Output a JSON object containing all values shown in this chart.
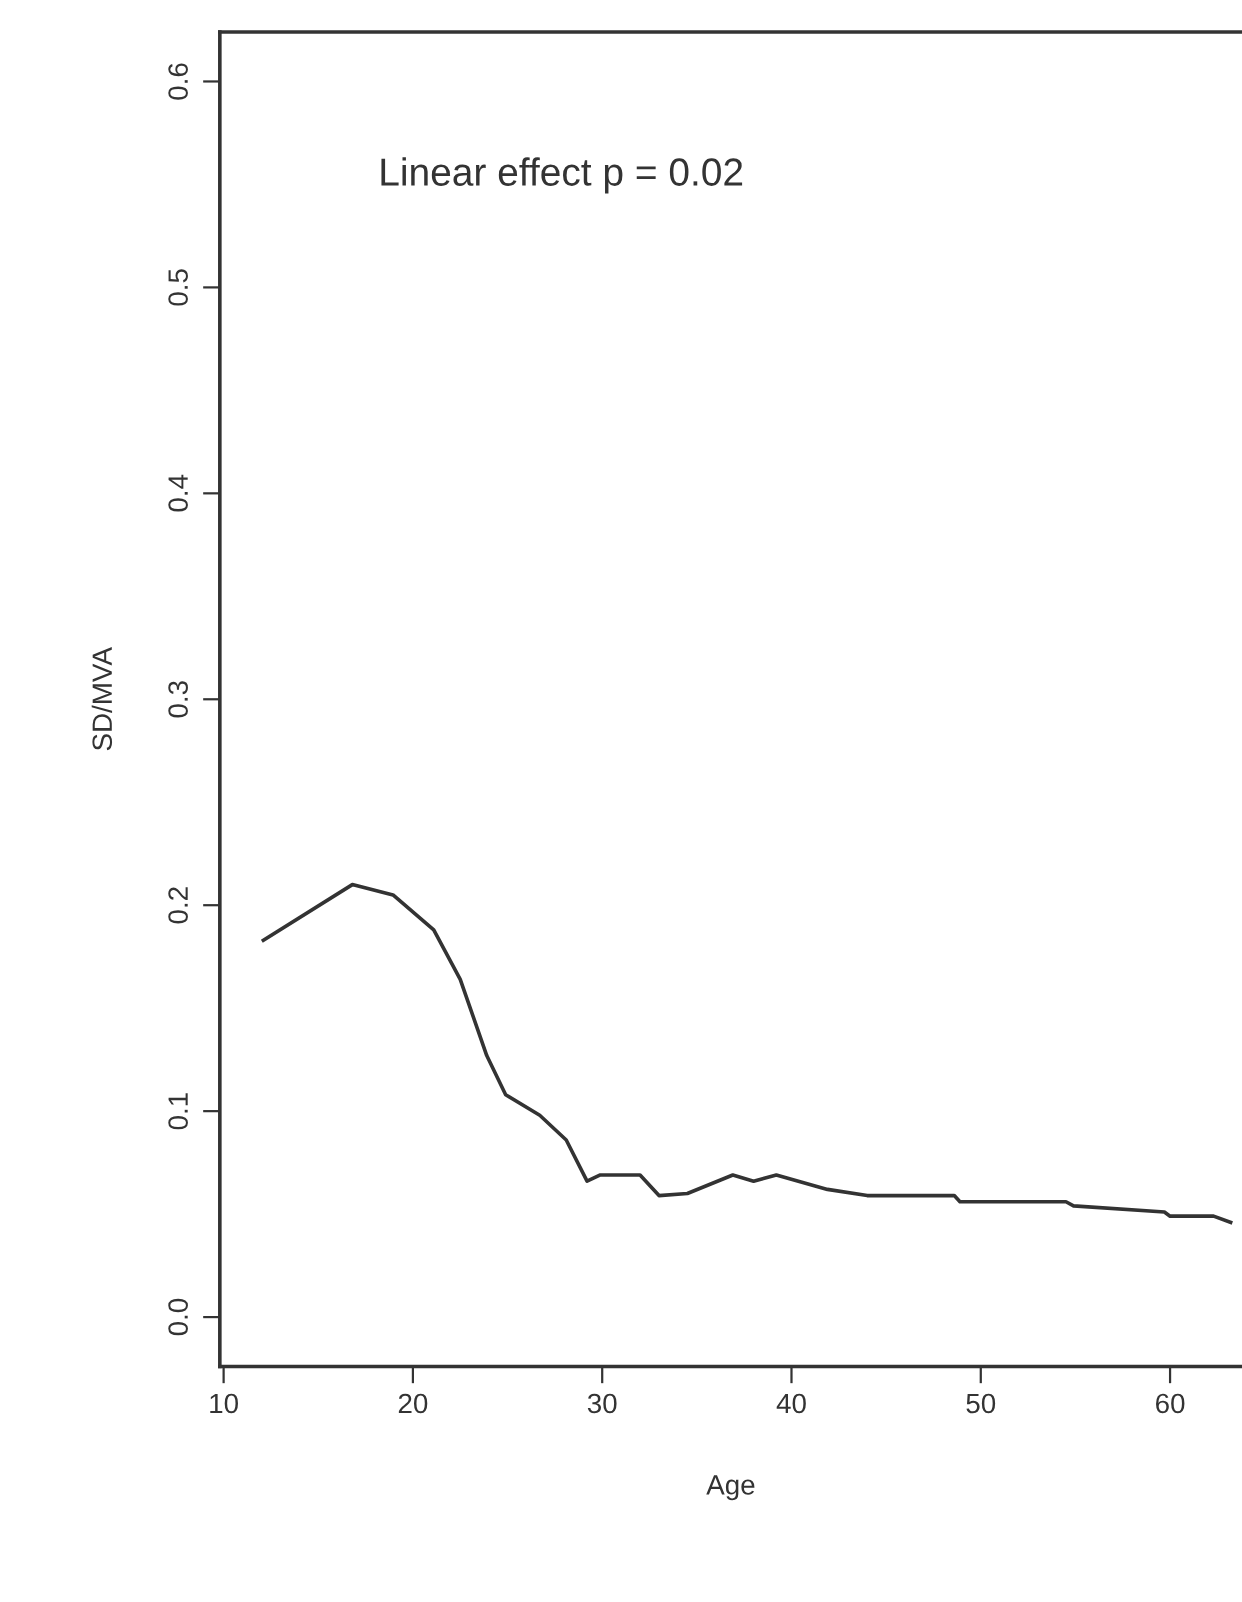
{
  "chart_data": {
    "type": "line",
    "xlabel": "Age",
    "ylabel": "SD/MVA",
    "annotations": [
      "Linear effect p = 0.02"
    ],
    "xlim": [
      9.8,
      63.8
    ],
    "ylim": [
      -0.024,
      0.624
    ],
    "xticks": [
      10,
      20,
      30,
      40,
      50,
      60
    ],
    "yticks": [
      {
        "value": 0,
        "label": "0.0"
      },
      0.1,
      0.2,
      0.3,
      0.4,
      0.5,
      0.6
    ],
    "grid": false,
    "legend": false,
    "marker": "none",
    "line_style": "solid",
    "series": [
      {
        "color": "#333333",
        "x": [
          12.1,
          16.8,
          18.95,
          21.1,
          22.5,
          23.9,
          24.9,
          26.7,
          28.1,
          29.2,
          29.9,
          32.0,
          33.0,
          34.5,
          36.9,
          38.0,
          39.2,
          41.9,
          44.0,
          48.6,
          48.9,
          54.5,
          54.9,
          59.7,
          60.0,
          62.3,
          63.2
        ],
        "values": [
          0.183,
          0.21,
          0.205,
          0.188,
          0.164,
          0.127,
          0.108,
          0.098,
          0.086,
          0.066,
          0.069,
          0.069,
          0.059,
          0.06,
          0.069,
          0.066,
          0.069,
          0.062,
          0.059,
          0.059,
          0.056,
          0.056,
          0.054,
          0.051,
          0.049,
          0.049,
          0.046
        ]
      }
    ]
  }
}
